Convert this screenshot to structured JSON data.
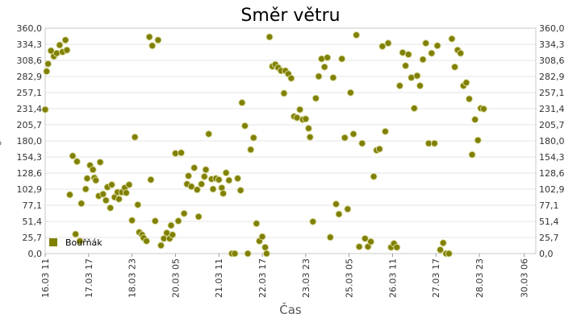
{
  "chart_data": {
    "type": "scatter",
    "title": "Směr větru",
    "xlabel": "Čas",
    "ylabel": "°",
    "ylim": [
      0,
      360
    ],
    "xlim": [
      "2011-03-16 11:00",
      "2011-03-30 14:00"
    ],
    "y_ticks": [
      "0,0",
      "25,7",
      "51,4",
      "77,1",
      "102,9",
      "128,6",
      "154,3",
      "180,0",
      "205,7",
      "231,4",
      "257,1",
      "282,9",
      "308,6",
      "334,3",
      "360,0"
    ],
    "x_ticks": [
      {
        "label": "16.03 11",
        "t": "2011-03-16 11:00"
      },
      {
        "label": "17.03 17",
        "t": "2011-03-17 17:00"
      },
      {
        "label": "18.03 23",
        "t": "2011-03-18 23:00"
      },
      {
        "label": "20.03 05",
        "t": "2011-03-20 05:00"
      },
      {
        "label": "21.03 11",
        "t": "2011-03-21 11:00"
      },
      {
        "label": "22.03 17",
        "t": "2011-03-22 17:00"
      },
      {
        "label": "23.03 23",
        "t": "2011-03-23 23:00"
      },
      {
        "label": "25.03 05",
        "t": "2011-03-25 05:00"
      },
      {
        "label": "26.03 11",
        "t": "2011-03-26 11:00"
      },
      {
        "label": "27.03 17",
        "t": "2011-03-27 17:00"
      },
      {
        "label": "28.03 23",
        "t": "2011-03-28 23:00"
      },
      {
        "label": "30.03 06",
        "t": "2011-03-30 06:00"
      }
    ],
    "grid": true,
    "legend_position": "bottom-left",
    "series": [
      {
        "name": "Bouřňák",
        "color": "#808000",
        "points": [
          [
            "2011-03-16 11:00",
            230
          ],
          [
            "2011-03-16 12:00",
            291
          ],
          [
            "2011-03-16 13:00",
            303
          ],
          [
            "2011-03-16 15:00",
            324
          ],
          [
            "2011-03-16 17:00",
            315
          ],
          [
            "2011-03-16 19:00",
            320
          ],
          [
            "2011-03-16 21:00",
            333
          ],
          [
            "2011-03-16 23:00",
            322
          ],
          [
            "2011-03-17 01:00",
            341
          ],
          [
            "2011-03-17 02:00",
            325
          ],
          [
            "2011-03-17 04:00",
            94
          ],
          [
            "2011-03-17 06:00",
            156
          ],
          [
            "2011-03-17 08:00",
            31
          ],
          [
            "2011-03-17 09:00",
            147
          ],
          [
            "2011-03-17 11:00",
            20
          ],
          [
            "2011-03-17 12:00",
            80
          ],
          [
            "2011-03-17 15:00",
            103
          ],
          [
            "2011-03-17 16:00",
            120
          ],
          [
            "2011-03-17 18:00",
            141
          ],
          [
            "2011-03-17 20:00",
            134
          ],
          [
            "2011-03-17 21:00",
            121
          ],
          [
            "2011-03-17 22:00",
            117
          ],
          [
            "2011-03-18 00:00",
            92
          ],
          [
            "2011-03-18 01:00",
            146
          ],
          [
            "2011-03-18 03:00",
            95
          ],
          [
            "2011-03-18 05:00",
            85
          ],
          [
            "2011-03-18 06:00",
            106
          ],
          [
            "2011-03-18 08:00",
            73
          ],
          [
            "2011-03-18 09:00",
            110
          ],
          [
            "2011-03-18 11:00",
            90
          ],
          [
            "2011-03-18 13:00",
            98
          ],
          [
            "2011-03-18 14:00",
            87
          ],
          [
            "2011-03-18 16:00",
            98
          ],
          [
            "2011-03-18 18:00",
            105
          ],
          [
            "2011-03-18 19:00",
            97
          ],
          [
            "2011-03-18 21:00",
            110
          ],
          [
            "2011-03-18 23:00",
            53
          ],
          [
            "2011-03-19 01:00",
            186
          ],
          [
            "2011-03-19 03:00",
            78
          ],
          [
            "2011-03-19 04:00",
            34
          ],
          [
            "2011-03-19 06:00",
            30
          ],
          [
            "2011-03-19 07:00",
            25
          ],
          [
            "2011-03-19 09:00",
            20
          ],
          [
            "2011-03-19 11:00",
            346
          ],
          [
            "2011-03-19 12:00",
            118
          ],
          [
            "2011-03-19 13:00",
            332
          ],
          [
            "2011-03-19 15:00",
            52
          ],
          [
            "2011-03-19 17:00",
            341
          ],
          [
            "2011-03-19 19:00",
            13
          ],
          [
            "2011-03-19 21:00",
            24
          ],
          [
            "2011-03-19 23:00",
            33
          ],
          [
            "2011-03-20 01:00",
            24
          ],
          [
            "2011-03-20 02:00",
            45
          ],
          [
            "2011-03-20 03:00",
            30
          ],
          [
            "2011-03-20 05:00",
            160
          ],
          [
            "2011-03-20 07:00",
            52
          ],
          [
            "2011-03-20 09:00",
            161
          ],
          [
            "2011-03-20 11:00",
            64
          ],
          [
            "2011-03-20 13:00",
            111
          ],
          [
            "2011-03-20 14:00",
            124
          ],
          [
            "2011-03-20 16:00",
            107
          ],
          [
            "2011-03-20 18:00",
            137
          ],
          [
            "2011-03-20 20:00",
            102
          ],
          [
            "2011-03-20 21:00",
            59
          ],
          [
            "2011-03-20 23:00",
            111
          ],
          [
            "2011-03-21 01:00",
            123
          ],
          [
            "2011-03-21 02:00",
            134
          ],
          [
            "2011-03-21 04:00",
            191
          ],
          [
            "2011-03-21 06:00",
            119
          ],
          [
            "2011-03-21 07:00",
            103
          ],
          [
            "2011-03-21 09:00",
            120
          ],
          [
            "2011-03-21 11:00",
            118
          ],
          [
            "2011-03-21 13:00",
            105
          ],
          [
            "2011-03-21 14:00",
            96
          ],
          [
            "2011-03-21 16:00",
            129
          ],
          [
            "2011-03-21 18:00",
            117
          ],
          [
            "2011-03-21 20:00",
            0
          ],
          [
            "2011-03-21 22:00",
            0
          ],
          [
            "2011-03-22 00:00",
            120
          ],
          [
            "2011-03-22 02:00",
            101
          ],
          [
            "2011-03-22 03:00",
            241
          ],
          [
            "2011-03-22 05:00",
            204
          ],
          [
            "2011-03-22 07:00",
            0
          ],
          [
            "2011-03-22 09:00",
            166
          ],
          [
            "2011-03-22 11:00",
            185
          ],
          [
            "2011-03-22 13:00",
            48
          ],
          [
            "2011-03-22 15:00",
            20
          ],
          [
            "2011-03-22 17:00",
            27
          ],
          [
            "2011-03-22 19:00",
            10
          ],
          [
            "2011-03-22 20:00",
            0
          ],
          [
            "2011-03-22 22:00",
            346
          ],
          [
            "2011-03-23 00:00",
            299
          ],
          [
            "2011-03-23 02:00",
            302
          ],
          [
            "2011-03-23 04:00",
            297
          ],
          [
            "2011-03-23 06:00",
            292
          ],
          [
            "2011-03-23 08:00",
            256
          ],
          [
            "2011-03-23 09:00",
            292
          ],
          [
            "2011-03-23 11:00",
            287
          ],
          [
            "2011-03-23 13:00",
            280
          ],
          [
            "2011-03-23 15:00",
            219
          ],
          [
            "2011-03-23 17:00",
            217
          ],
          [
            "2011-03-23 19:00",
            230
          ],
          [
            "2011-03-23 21:00",
            214
          ],
          [
            "2011-03-23 23:00",
            215
          ],
          [
            "2011-03-24 01:00",
            200
          ],
          [
            "2011-03-24 02:00",
            186
          ],
          [
            "2011-03-24 04:00",
            51
          ],
          [
            "2011-03-24 06:00",
            248
          ],
          [
            "2011-03-24 08:00",
            283
          ],
          [
            "2011-03-24 10:00",
            311
          ],
          [
            "2011-03-24 12:00",
            298
          ],
          [
            "2011-03-24 14:00",
            313
          ],
          [
            "2011-03-24 16:00",
            26
          ],
          [
            "2011-03-24 18:00",
            281
          ],
          [
            "2011-03-24 20:00",
            79
          ],
          [
            "2011-03-24 22:00",
            63
          ],
          [
            "2011-03-25 00:00",
            311
          ],
          [
            "2011-03-25 02:00",
            185
          ],
          [
            "2011-03-25 04:00",
            71
          ],
          [
            "2011-03-25 06:00",
            257
          ],
          [
            "2011-03-25 08:00",
            191
          ],
          [
            "2011-03-25 10:00",
            349
          ],
          [
            "2011-03-25 12:00",
            11
          ],
          [
            "2011-03-25 14:00",
            176
          ],
          [
            "2011-03-25 16:00",
            24
          ],
          [
            "2011-03-25 18:00",
            11
          ],
          [
            "2011-03-25 20:00",
            19
          ],
          [
            "2011-03-25 22:00",
            123
          ],
          [
            "2011-03-26 00:00",
            165
          ],
          [
            "2011-03-26 02:00",
            167
          ],
          [
            "2011-03-26 04:00",
            331
          ],
          [
            "2011-03-26 06:00",
            195
          ],
          [
            "2011-03-26 08:00",
            336
          ],
          [
            "2011-03-26 10:00",
            10
          ],
          [
            "2011-03-26 12:00",
            16
          ],
          [
            "2011-03-26 14:00",
            10
          ],
          [
            "2011-03-26 16:00",
            268
          ],
          [
            "2011-03-26 18:00",
            321
          ],
          [
            "2011-03-26 20:00",
            300
          ],
          [
            "2011-03-26 22:00",
            318
          ],
          [
            "2011-03-27 00:00",
            281
          ],
          [
            "2011-03-27 02:00",
            232
          ],
          [
            "2011-03-27 04:00",
            284
          ],
          [
            "2011-03-27 06:00",
            268
          ],
          [
            "2011-03-27 08:00",
            310
          ],
          [
            "2011-03-27 10:00",
            336
          ],
          [
            "2011-03-27 12:00",
            176
          ],
          [
            "2011-03-27 14:00",
            320
          ],
          [
            "2011-03-27 16:00",
            176
          ],
          [
            "2011-03-27 18:00",
            332
          ],
          [
            "2011-03-27 20:00",
            6
          ],
          [
            "2011-03-27 22:00",
            17
          ],
          [
            "2011-03-28 00:00",
            0
          ],
          [
            "2011-03-28 02:00",
            0
          ],
          [
            "2011-03-28 04:00",
            343
          ],
          [
            "2011-03-28 06:00",
            298
          ],
          [
            "2011-03-28 08:00",
            325
          ],
          [
            "2011-03-28 10:00",
            320
          ],
          [
            "2011-03-28 12:00",
            268
          ],
          [
            "2011-03-28 14:00",
            273
          ],
          [
            "2011-03-28 16:00",
            247
          ],
          [
            "2011-03-28 18:00",
            158
          ],
          [
            "2011-03-28 20:00",
            214
          ],
          [
            "2011-03-28 22:00",
            181
          ],
          [
            "2011-03-29 00:00",
            232
          ],
          [
            "2011-03-29 02:00",
            231
          ]
        ]
      }
    ]
  }
}
